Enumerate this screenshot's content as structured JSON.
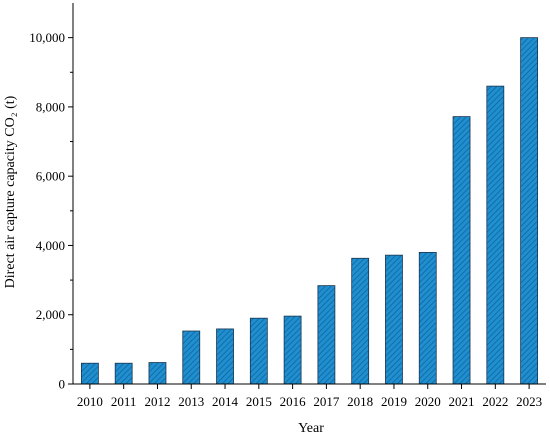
{
  "chart_data": {
    "type": "bar",
    "categories": [
      "2010",
      "2011",
      "2012",
      "2013",
      "2014",
      "2015",
      "2016",
      "2017",
      "2018",
      "2019",
      "2020",
      "2021",
      "2022",
      "2023"
    ],
    "values": [
      600,
      600,
      620,
      1530,
      1590,
      1900,
      1960,
      2840,
      3630,
      3720,
      3800,
      7720,
      8600,
      10000
    ],
    "xlabel": "Year",
    "ylabel": "Direct air capture capacity CO₂ (t)",
    "ylim": [
      0,
      11000
    ],
    "y_ticks": [
      0,
      2000,
      4000,
      6000,
      8000,
      10000
    ],
    "y_tick_labels": [
      "0",
      "2,000",
      "4,000",
      "6,000",
      "8,000",
      "10,000"
    ],
    "grid": false,
    "colors": {
      "bar_fill": "#1f8fd0",
      "bar_stroke": "#1a3550",
      "hatch": "#0f5f96"
    }
  }
}
